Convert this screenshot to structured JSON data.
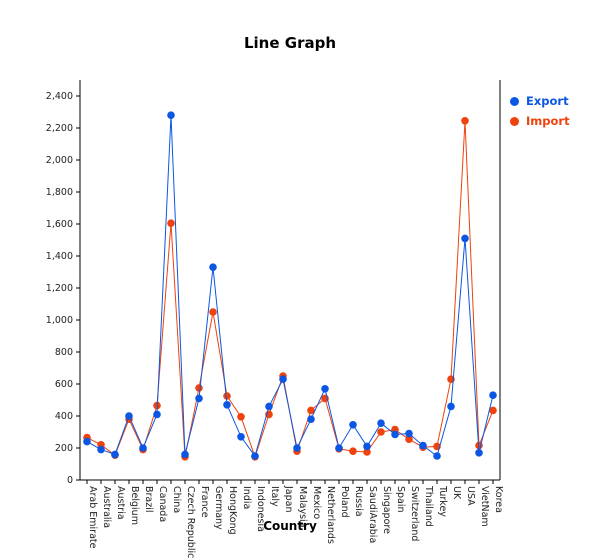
{
  "chart_data": {
    "type": "line",
    "title": "Line Graph",
    "xlabel": "Country",
    "ylabel": "",
    "ylim": [
      0,
      2500
    ],
    "yticks": [
      "0",
      "200",
      "400",
      "600",
      "800",
      "1,000",
      "1,200",
      "1,400",
      "1,600",
      "1,800",
      "2,000",
      "2,200",
      "2,400"
    ],
    "grid": false,
    "legend_position": "top-right",
    "categories": [
      "Arab Emirate",
      "Australia",
      "Austria",
      "Belgium",
      "Brazil",
      "Canada",
      "China",
      "Czech Republic",
      "France",
      "Germany",
      "HongKong",
      "India",
      "Indonesia",
      "Italy",
      "Japan",
      "Malaysia",
      "Mexico",
      "Netherlands",
      "Poland",
      "Russia",
      "SaudiArabia",
      "Singapore",
      "Spain",
      "Switzerland",
      "Thailand",
      "Turkey",
      "UK",
      "USA",
      "VietNam",
      "Korea"
    ],
    "series": [
      {
        "name": "Export",
        "color": "#0b57e3",
        "values": [
          240,
          190,
          160,
          400,
          200,
          410,
          2280,
          160,
          510,
          1330,
          470,
          270,
          150,
          460,
          630,
          200,
          380,
          570,
          200,
          345,
          210,
          355,
          285,
          290,
          215,
          150,
          460,
          1510,
          170,
          530
        ]
      },
      {
        "name": "Import",
        "color": "#f0420c",
        "values": [
          265,
          220,
          155,
          380,
          190,
          465,
          1605,
          145,
          575,
          1050,
          525,
          395,
          145,
          410,
          650,
          180,
          435,
          510,
          195,
          180,
          175,
          300,
          315,
          255,
          205,
          210,
          630,
          2245,
          215,
          435
        ]
      }
    ]
  }
}
